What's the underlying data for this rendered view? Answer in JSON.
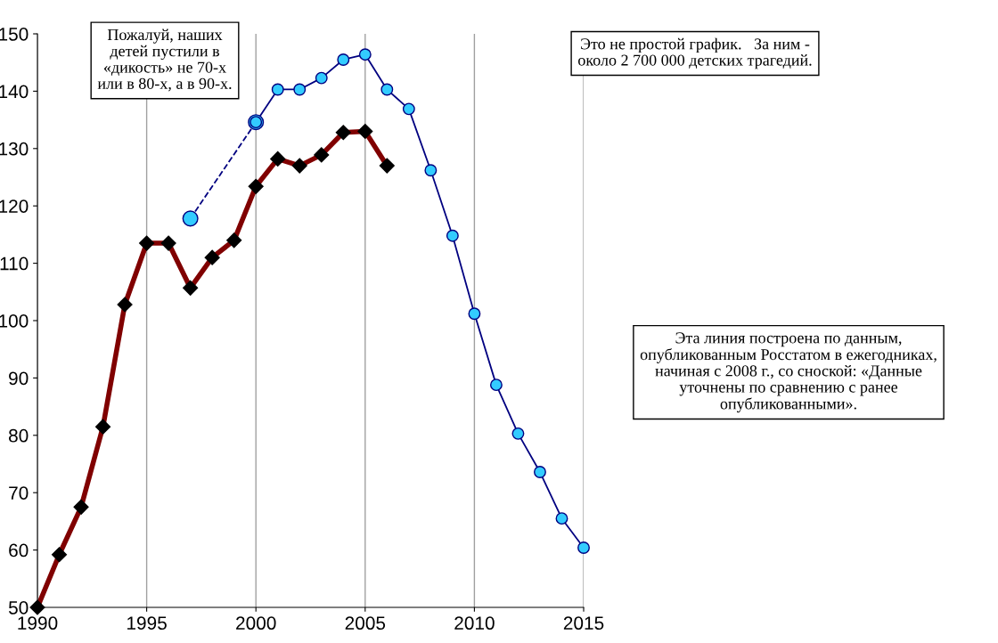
{
  "chart_data": {
    "type": "line",
    "xlim": [
      1990,
      2015
    ],
    "ylim": [
      50,
      150
    ],
    "xticks": [
      1990,
      1995,
      2000,
      2005,
      2010,
      2015
    ],
    "yticks": [
      50,
      60,
      70,
      80,
      90,
      100,
      110,
      120,
      130,
      140,
      150
    ],
    "grid": "x",
    "series": [
      {
        "color": "#800000",
        "marker": "diamond",
        "line_style": "solid",
        "x": [
          1990,
          1991,
          1992,
          1993,
          1994,
          1995,
          1996,
          1997,
          1998,
          1999,
          2000,
          2001,
          2002,
          2003,
          2004,
          2005,
          2006
        ],
        "values": [
          50,
          59.2,
          67.5,
          81.5,
          102.8,
          113.5,
          113.5,
          105.7,
          111.0,
          114.0,
          123.4,
          128.2,
          127.0,
          128.9,
          132.8,
          133.0,
          127.0
        ]
      },
      {
        "color": "#000080",
        "marker": "circle",
        "line_style": "dashed",
        "x": [
          1997,
          2000
        ],
        "values": [
          117.8,
          134.6
        ]
      },
      {
        "color": "#000080",
        "marker": "circle",
        "line_style": "solid",
        "x": [
          2000,
          2001,
          2002,
          2003,
          2004,
          2005,
          2006,
          2007,
          2008,
          2009,
          2010,
          2011,
          2012,
          2013,
          2014,
          2015
        ],
        "values": [
          134.6,
          140.3,
          140.3,
          142.3,
          145.5,
          146.4,
          140.3,
          136.9,
          126.2,
          114.8,
          101.2,
          88.8,
          80.3,
          73.6,
          65.5,
          60.4
        ]
      }
    ],
    "annotations": [
      "Пожалуй, наших\nдетей пустили в\n«дикость» не 70-х\nили в 80-х, а в 90-х.",
      "Это не простой график.   За ним -\nоколо 2 700 000 детских трагедий.",
      "Эта линия построена по данным,\nопубликованным Росстатом в ежегодниках,\nначиная с 2008 г., со сноской: «Данные\nуточнены по сравнению с ранее\nопубликованными»."
    ]
  }
}
